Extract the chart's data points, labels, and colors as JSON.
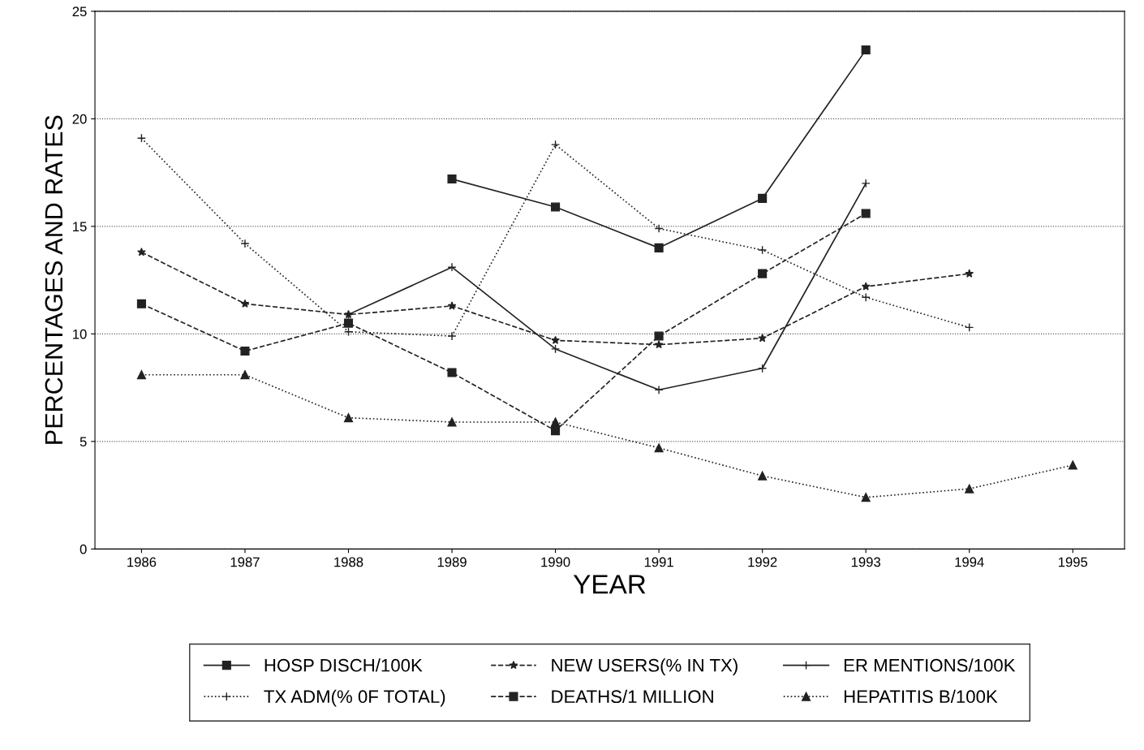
{
  "chart_data": {
    "type": "line",
    "xlabel": "YEAR",
    "ylabel": "PERCENTAGES AND RATES",
    "categories": [
      "1986",
      "1987",
      "1988",
      "1989",
      "1990",
      "1991",
      "1992",
      "1993",
      "1994",
      "1995"
    ],
    "ylim": [
      0,
      25
    ],
    "yticks": [
      0,
      5,
      10,
      15,
      20,
      25
    ],
    "grid": "y",
    "legend": "bottom",
    "series": [
      {
        "name": "HOSP DISCH/100K",
        "color": "#222222",
        "marker": "square",
        "line_style": "solid",
        "values": [
          null,
          null,
          null,
          17.2,
          15.9,
          14.0,
          16.3,
          23.2,
          null,
          null
        ]
      },
      {
        "name": "TX ADM(% 0F TOTAL)",
        "color": "#222222",
        "marker": "cross",
        "line_style": "dotted",
        "values": [
          19.1,
          14.2,
          10.1,
          9.9,
          18.8,
          14.9,
          13.9,
          11.7,
          10.3,
          null
        ]
      },
      {
        "name": "NEW USERS(% IN TX)",
        "color": "#222222",
        "marker": "star",
        "line_style": "dashed",
        "values": [
          13.8,
          11.4,
          10.9,
          11.3,
          9.7,
          9.5,
          9.8,
          12.2,
          12.8,
          null
        ]
      },
      {
        "name": "DEATHS/1 MILLION",
        "color": "#222222",
        "marker": "square",
        "line_style": "dashed",
        "values": [
          11.4,
          9.2,
          10.5,
          8.2,
          5.5,
          9.9,
          12.8,
          15.6,
          null,
          null
        ]
      },
      {
        "name": "ER MENTIONS/100K",
        "color": "#222222",
        "marker": "cross",
        "line_style": "solid",
        "values": [
          null,
          null,
          10.9,
          13.1,
          9.3,
          7.4,
          8.4,
          17.0,
          null,
          null
        ]
      },
      {
        "name": "HEPATITIS B/100K",
        "color": "#222222",
        "marker": "triangle",
        "line_style": "dotted",
        "values": [
          8.1,
          8.1,
          6.1,
          5.9,
          5.9,
          4.7,
          3.4,
          2.4,
          2.8,
          3.9
        ]
      }
    ]
  }
}
